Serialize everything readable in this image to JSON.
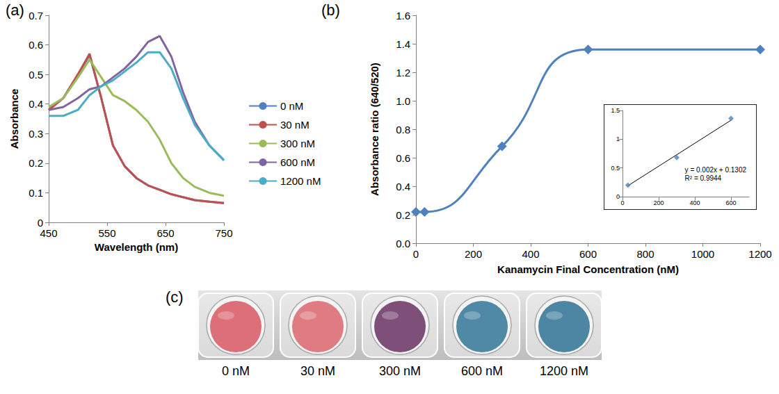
{
  "chart_data": [
    {
      "type": "line",
      "panel": "(a)",
      "x_label": "Wavelength (nm)",
      "y_label": "Absorbance",
      "x": [
        450,
        475,
        500,
        520,
        540,
        560,
        580,
        600,
        620,
        640,
        660,
        680,
        700,
        725,
        750
      ],
      "series": [
        {
          "name": "0 nM",
          "color": "#4f81bd",
          "values": [
            0.38,
            0.42,
            0.5,
            0.565,
            0.42,
            0.26,
            0.19,
            0.15,
            0.125,
            0.11,
            0.095,
            0.085,
            0.075,
            0.07,
            0.065
          ]
        },
        {
          "name": "30 nM",
          "color": "#c0504d",
          "values": [
            0.38,
            0.42,
            0.5,
            0.57,
            0.42,
            0.26,
            0.19,
            0.15,
            0.125,
            0.11,
            0.095,
            0.085,
            0.075,
            0.07,
            0.065
          ]
        },
        {
          "name": "300 nM",
          "color": "#9bbb59",
          "values": [
            0.39,
            0.42,
            0.49,
            0.55,
            0.49,
            0.43,
            0.41,
            0.38,
            0.34,
            0.28,
            0.2,
            0.15,
            0.12,
            0.1,
            0.09
          ]
        },
        {
          "name": "600 nM",
          "color": "#8064a2",
          "values": [
            0.38,
            0.39,
            0.42,
            0.45,
            0.46,
            0.49,
            0.52,
            0.56,
            0.61,
            0.63,
            0.56,
            0.44,
            0.34,
            0.26,
            0.21
          ]
        },
        {
          "name": "1200 nM",
          "color": "#4bacc6",
          "values": [
            0.36,
            0.36,
            0.38,
            0.43,
            0.46,
            0.48,
            0.51,
            0.54,
            0.575,
            0.575,
            0.52,
            0.42,
            0.33,
            0.26,
            0.21
          ]
        }
      ],
      "xlim": [
        450,
        750
      ],
      "xticks": [
        450,
        550,
        650,
        750
      ],
      "ylim": [
        0,
        0.7
      ],
      "yticks": [
        0,
        0.1,
        0.2,
        0.3,
        0.4,
        0.5,
        0.6,
        0.7
      ],
      "marker": "none",
      "grid": false,
      "legend": "right"
    },
    {
      "type": "line",
      "panel": "(b)",
      "x_label": "Kanamycin Final Concentration (nM)",
      "y_label": "Absorbance ratio (640/520)",
      "x": [
        0,
        30,
        300,
        600,
        1200
      ],
      "values": [
        0.22,
        0.22,
        0.68,
        1.36,
        1.36
      ],
      "color": "#4f81bd",
      "marker": "diamond",
      "line_style": "smooth",
      "xlim": [
        0,
        1200
      ],
      "xticks": [
        0,
        200,
        400,
        600,
        800,
        1000,
        1200
      ],
      "ylim": [
        0,
        1.6
      ],
      "yticks": [
        {
          "value": 0,
          "label": "0.0"
        },
        0.2,
        0.4,
        0.6,
        0.8,
        {
          "value": 1,
          "label": "1.0"
        },
        1.2,
        1.4,
        1.6
      ],
      "grid": false
    },
    {
      "type": "scatter",
      "x": [
        30,
        300,
        600
      ],
      "values": [
        0.2,
        0.68,
        1.36
      ],
      "color": "#4f81bd",
      "marker": "diamond",
      "trendline": {
        "x": [
          30,
          600
        ],
        "values": [
          0.19,
          1.33
        ],
        "color": "#000000"
      },
      "annotations": [
        "y = 0.002x + 0.1302",
        "R² = 0.9944"
      ],
      "xlim": [
        0,
        700
      ],
      "xticks": [
        0,
        200,
        400,
        600
      ],
      "ylim": [
        0,
        1.5
      ],
      "yticks": [
        0,
        0.5,
        1,
        1.5
      ],
      "grid": false
    }
  ],
  "photo": {
    "panel": "(c)",
    "wells": [
      {
        "label": "0 nM",
        "color": "#dc6f78"
      },
      {
        "label": "30 nM",
        "color": "#df7c82"
      },
      {
        "label": "300 nM",
        "color": "#7e4f78"
      },
      {
        "label": "600 nM",
        "color": "#4f89a6"
      },
      {
        "label": "1200 nM",
        "color": "#4c86a3"
      }
    ]
  }
}
